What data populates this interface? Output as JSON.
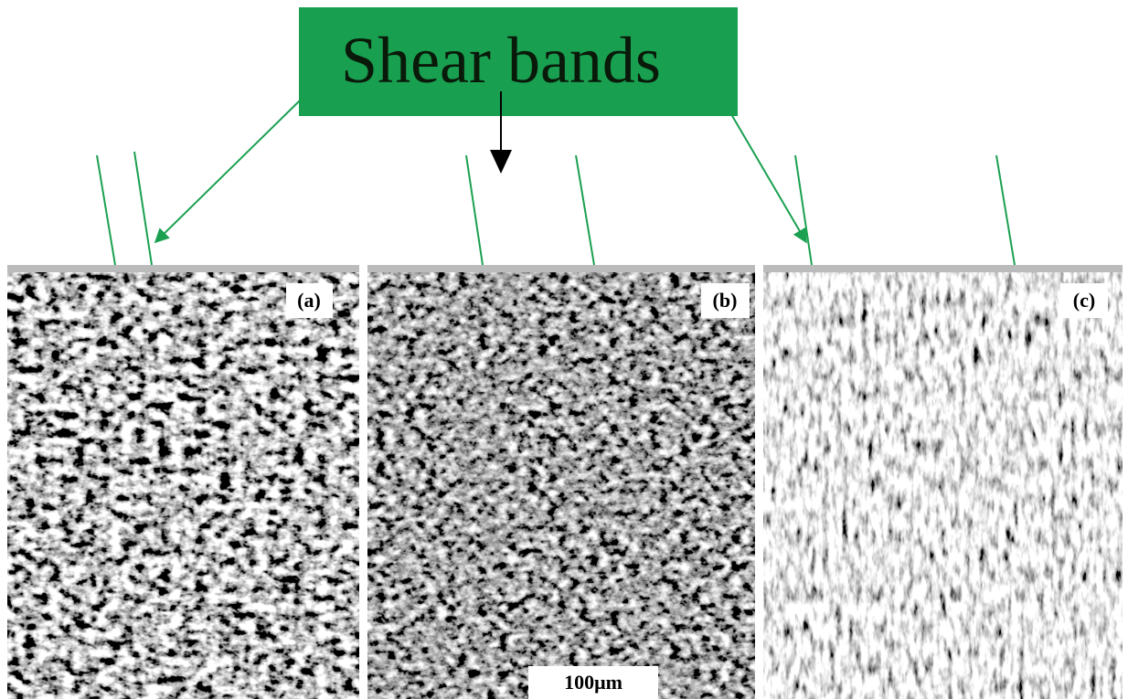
{
  "title": "Shear bands",
  "panels": [
    {
      "label": "(a)"
    },
    {
      "label": "(b)"
    },
    {
      "label": "(c)"
    }
  ],
  "scale_bar": "100μm"
}
